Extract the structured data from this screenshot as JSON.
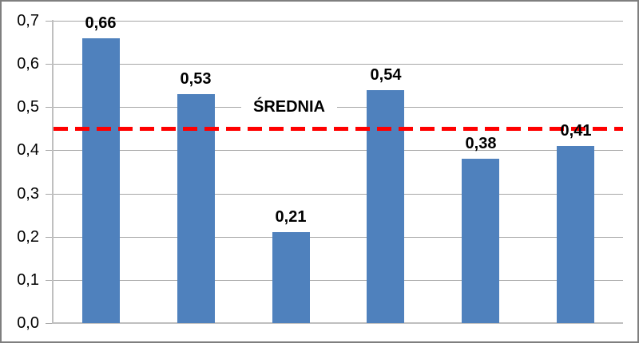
{
  "chart_data": {
    "type": "bar",
    "title": "",
    "xlabel": "",
    "ylabel": "",
    "categories": [
      "",
      "",
      "",
      "",
      "",
      ""
    ],
    "values": [
      0.66,
      0.53,
      0.21,
      0.54,
      0.38,
      0.41
    ],
    "value_labels": [
      "0,66",
      "0,53",
      "0,21",
      "0,54",
      "0,38",
      "0,41"
    ],
    "y_tick_values": [
      0.0,
      0.1,
      0.2,
      0.3,
      0.4,
      0.5,
      0.6,
      0.7
    ],
    "y_tick_labels": [
      "0,0",
      "0,1",
      "0,2",
      "0,3",
      "0,4",
      "0,5",
      "0,6",
      "0,7"
    ],
    "ylim": [
      0,
      0.7
    ],
    "grid": true,
    "legend_position": "none",
    "x_axis_labels_visible": false,
    "reference_line": {
      "value": 0.45,
      "label": "ŚREDNIA",
      "style": "dashed",
      "color": "#FF0000"
    },
    "colors": {
      "bar": "#4F81BD",
      "gridline": "#A6A6A6",
      "axis": "#BFBFBF",
      "label_text": "#000000",
      "reference_line": "#FF0000",
      "background": "#FFFFFF",
      "chart_border": "#7F7F7F"
    }
  }
}
